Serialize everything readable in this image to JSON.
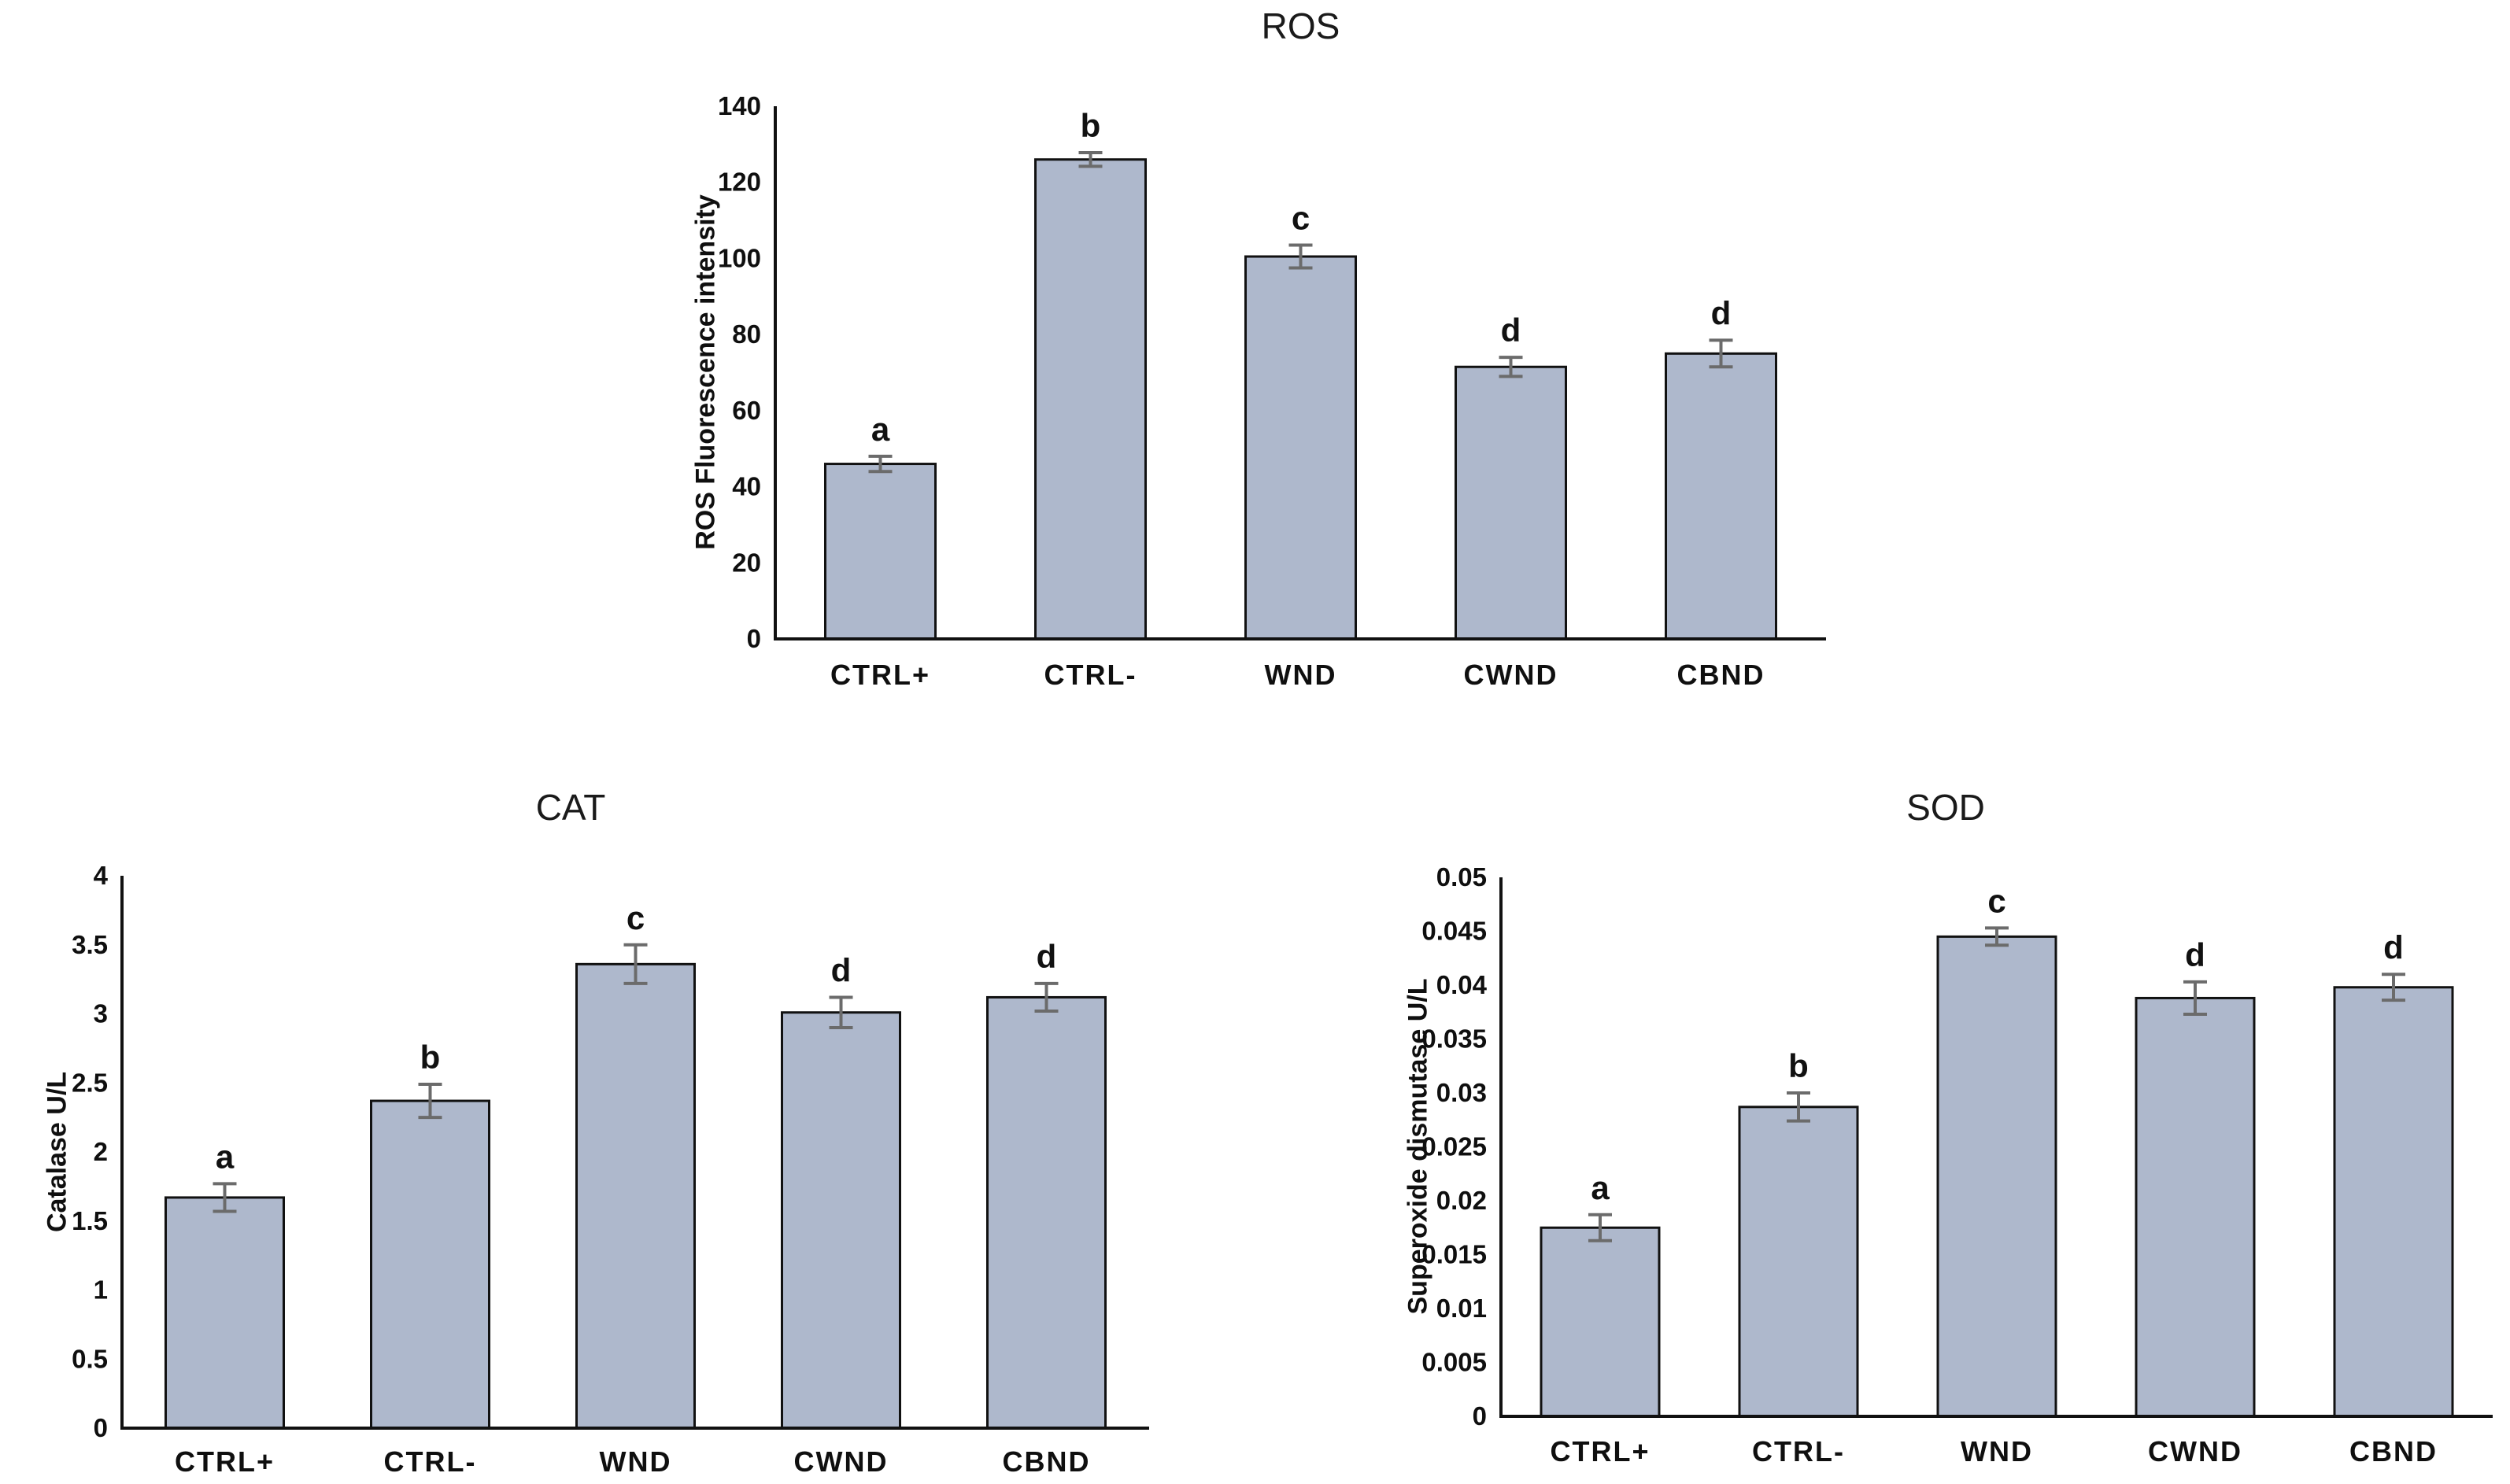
{
  "figure": {
    "background": "#ffffff",
    "bar_fill": "#aeb8cc",
    "bar_border": "#111111",
    "error_bar_color": "#6b6b6b",
    "axis_color": "#111111",
    "text_color": "#0f0f0f"
  },
  "chart_data": [
    {
      "id": "ros",
      "type": "bar",
      "title": "ROS",
      "ylabel": "ROS Fluorescence intensity",
      "xlabel": "",
      "categories": [
        "CTRL+",
        "CTRL-",
        "WND",
        "CWND",
        "CBND"
      ],
      "values": [
        46,
        126,
        100.5,
        71.5,
        75
      ],
      "errors": [
        2,
        1.8,
        3,
        2.5,
        3.5
      ],
      "letters": [
        "a",
        "b",
        "c",
        "d",
        "d"
      ],
      "ylim": [
        0,
        140
      ],
      "ytick_labels": [
        "0",
        "20",
        "40",
        "60",
        "80",
        "100",
        "120",
        "140"
      ],
      "grid": false,
      "legend": "none"
    },
    {
      "id": "cat",
      "type": "bar",
      "title": "CAT",
      "ylabel": "Catalase U/L",
      "xlabel": "",
      "categories": [
        "CTRL+",
        "CTRL-",
        "WND",
        "CWND",
        "CBND"
      ],
      "values": [
        1.67,
        2.37,
        3.36,
        3.01,
        3.12
      ],
      "errors": [
        0.1,
        0.12,
        0.14,
        0.11,
        0.1
      ],
      "letters": [
        "a",
        "b",
        "c",
        "d",
        "d"
      ],
      "ylim": [
        0,
        4
      ],
      "ytick_labels": [
        "0",
        "0.5",
        "1",
        "1.5",
        "2",
        "2.5",
        "3",
        "3.5",
        "4"
      ],
      "grid": false,
      "legend": "none"
    },
    {
      "id": "sod",
      "type": "bar",
      "title": "SOD",
      "ylabel": "Superoxide dismutase U/L",
      "xlabel": "",
      "categories": [
        "CTRL+",
        "CTRL-",
        "WND",
        "CWND",
        "CBND"
      ],
      "values": [
        0.0175,
        0.0287,
        0.0445,
        0.0388,
        0.0398
      ],
      "errors": [
        0.0012,
        0.0013,
        0.0008,
        0.0015,
        0.0012
      ],
      "letters": [
        "a",
        "b",
        "c",
        "d",
        "d"
      ],
      "ylim": [
        0,
        0.05
      ],
      "ytick_labels": [
        "0",
        "0.005",
        "0.01",
        "0.015",
        "0.02",
        "0.025",
        "0.03",
        "0.035",
        "0.04",
        "0.045",
        "0.05"
      ],
      "grid": false,
      "legend": "none"
    }
  ]
}
